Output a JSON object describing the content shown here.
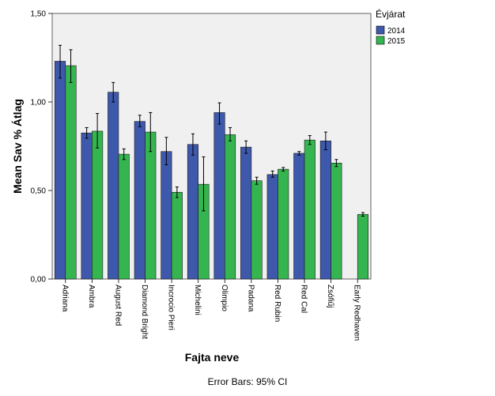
{
  "chart_data": {
    "type": "bar",
    "ylabel": "Mean Sav  % Átlag",
    "xlabel": "Fajta neve",
    "footnote": "Error Bars: 95% CI",
    "ylim": [
      0,
      1.5
    ],
    "yticks": [
      "0,00",
      "0,50",
      "1,00",
      "1,50"
    ],
    "grid": false,
    "legend": {
      "title": "Évjárat",
      "placement": "right"
    },
    "categories": [
      "Adriana",
      "Ambra",
      "August Red",
      "Diamond Bright",
      "Incrocio Pieri",
      "Michelini",
      "Olimpio",
      "Padana",
      "Red Rubin",
      "Red Cal",
      "Zsófiűj",
      "Early Redhaven"
    ],
    "series": [
      {
        "name": "2014",
        "color": "#3e58ac",
        "values": [
          1.23,
          0.825,
          1.055,
          0.89,
          0.72,
          0.76,
          0.94,
          0.745,
          0.59,
          0.71,
          0.78,
          null
        ],
        "ci_low": [
          1.135,
          0.795,
          1.0,
          0.86,
          0.645,
          0.7,
          0.875,
          0.71,
          0.575,
          0.7,
          0.73,
          null
        ],
        "ci_high": [
          1.32,
          0.855,
          1.11,
          0.925,
          0.8,
          0.82,
          0.995,
          0.78,
          0.61,
          0.72,
          0.83,
          null
        ]
      },
      {
        "name": "2015",
        "color": "#35b550",
        "values": [
          1.205,
          0.835,
          0.705,
          0.83,
          0.49,
          0.535,
          0.815,
          0.555,
          0.62,
          0.785,
          0.655,
          0.365
        ],
        "ci_low": [
          1.11,
          0.74,
          0.675,
          0.72,
          0.46,
          0.385,
          0.78,
          0.535,
          0.61,
          0.76,
          0.635,
          0.355
        ],
        "ci_high": [
          1.295,
          0.935,
          0.735,
          0.94,
          0.52,
          0.69,
          0.855,
          0.575,
          0.63,
          0.81,
          0.675,
          0.375
        ]
      }
    ]
  }
}
